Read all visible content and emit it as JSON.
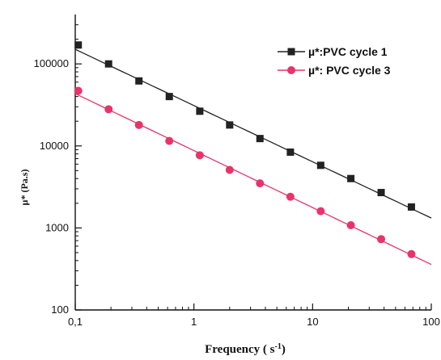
{
  "chart_data": {
    "type": "line",
    "title": "",
    "xlabel": "Frequency ( s",
    "xlabel_superscript": "-1",
    "xlabel_suffix": ")",
    "ylabel": "µ* (Pa.s)",
    "x_scale": "log",
    "y_scale": "log",
    "xlim": [
      0.1,
      100
    ],
    "ylim": [
      100,
      400000
    ],
    "grid": false,
    "legend_position": "top-right",
    "x_ticks": [
      {
        "value": 0.1,
        "label": "0,1"
      },
      {
        "value": 1,
        "label": "1"
      },
      {
        "value": 10,
        "label": "10"
      },
      {
        "value": 100,
        "label": "100"
      }
    ],
    "y_ticks": [
      {
        "value": 100,
        "label": "100"
      },
      {
        "value": 1000,
        "label": "1000"
      },
      {
        "value": 10000,
        "label": "10000"
      },
      {
        "value": 100000,
        "label": "100000"
      }
    ],
    "series": [
      {
        "name": "µ*:PVC cycle 1",
        "color": "#222222",
        "marker": "square",
        "line_range": [
          0.1,
          100
        ],
        "x": [
          0.106,
          0.191,
          0.344,
          0.62,
          1.12,
          2.0,
          3.6,
          6.5,
          11.7,
          21.0,
          37.8,
          68.0
        ],
        "y": [
          170000,
          100000,
          62000,
          40000,
          26500,
          18000,
          12300,
          8400,
          5800,
          4000,
          2700,
          1800
        ]
      },
      {
        "name": "µ*: PVC cycle 3",
        "color": "#e8336b",
        "marker": "circle",
        "line_range": [
          0.1,
          100
        ],
        "x": [
          0.106,
          0.191,
          0.344,
          0.62,
          1.12,
          2.0,
          3.6,
          6.5,
          11.7,
          21.0,
          37.8,
          68.0
        ],
        "y": [
          47000,
          28000,
          18000,
          11500,
          7700,
          5100,
          3500,
          2400,
          1600,
          1080,
          730,
          480
        ]
      }
    ]
  }
}
